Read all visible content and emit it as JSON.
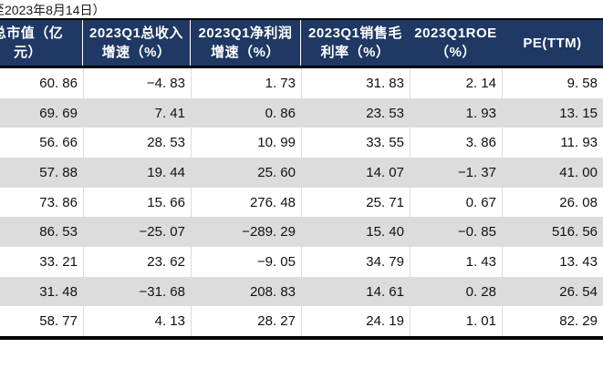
{
  "note": "至2023年8月14日）",
  "colors": {
    "header_bg": "#1F3864",
    "header_text": "#FFFFFF",
    "zebra_row": "#DCDCDC",
    "rule": "#000000",
    "body_text": "#111111"
  },
  "table": {
    "columns": [
      {
        "name": "total-market-cap",
        "lines": [
          "总市值（亿",
          "元）"
        ]
      },
      {
        "name": "revenue-growth",
        "lines": [
          "2023Q1总收入",
          "增速（%）"
        ]
      },
      {
        "name": "net-profit-growth",
        "lines": [
          "2023Q1净利润",
          "增速（%）"
        ]
      },
      {
        "name": "gross-margin",
        "lines": [
          "2023Q1销售毛",
          "利率（%）"
        ]
      },
      {
        "name": "roe",
        "lines": [
          "2023Q1ROE",
          "（%）"
        ]
      },
      {
        "name": "pe-ttm",
        "lines": [
          "PE(TTM)"
        ]
      }
    ],
    "rows": [
      [
        "60.86",
        "-4.83",
        "1.73",
        "31.83",
        "2.14",
        "9.58"
      ],
      [
        "69.69",
        "7.41",
        "0.86",
        "23.53",
        "1.93",
        "13.15"
      ],
      [
        "56.66",
        "28.53",
        "10.99",
        "33.55",
        "3.86",
        "11.93"
      ],
      [
        "57.88",
        "19.44",
        "25.60",
        "14.07",
        "-1.37",
        "41.00"
      ],
      [
        "73.86",
        "15.66",
        "276.48",
        "25.71",
        "0.67",
        "26.08"
      ],
      [
        "86.53",
        "-25.07",
        "-289.29",
        "15.40",
        "-0.85",
        "516.56"
      ],
      [
        "33.21",
        "23.62",
        "-9.05",
        "34.79",
        "1.43",
        "13.43"
      ],
      [
        "31.48",
        "-31.68",
        "208.83",
        "14.61",
        "0.28",
        "26.54"
      ],
      [
        "58.77",
        "4.13",
        "28.27",
        "24.19",
        "1.01",
        "82.29"
      ]
    ]
  }
}
